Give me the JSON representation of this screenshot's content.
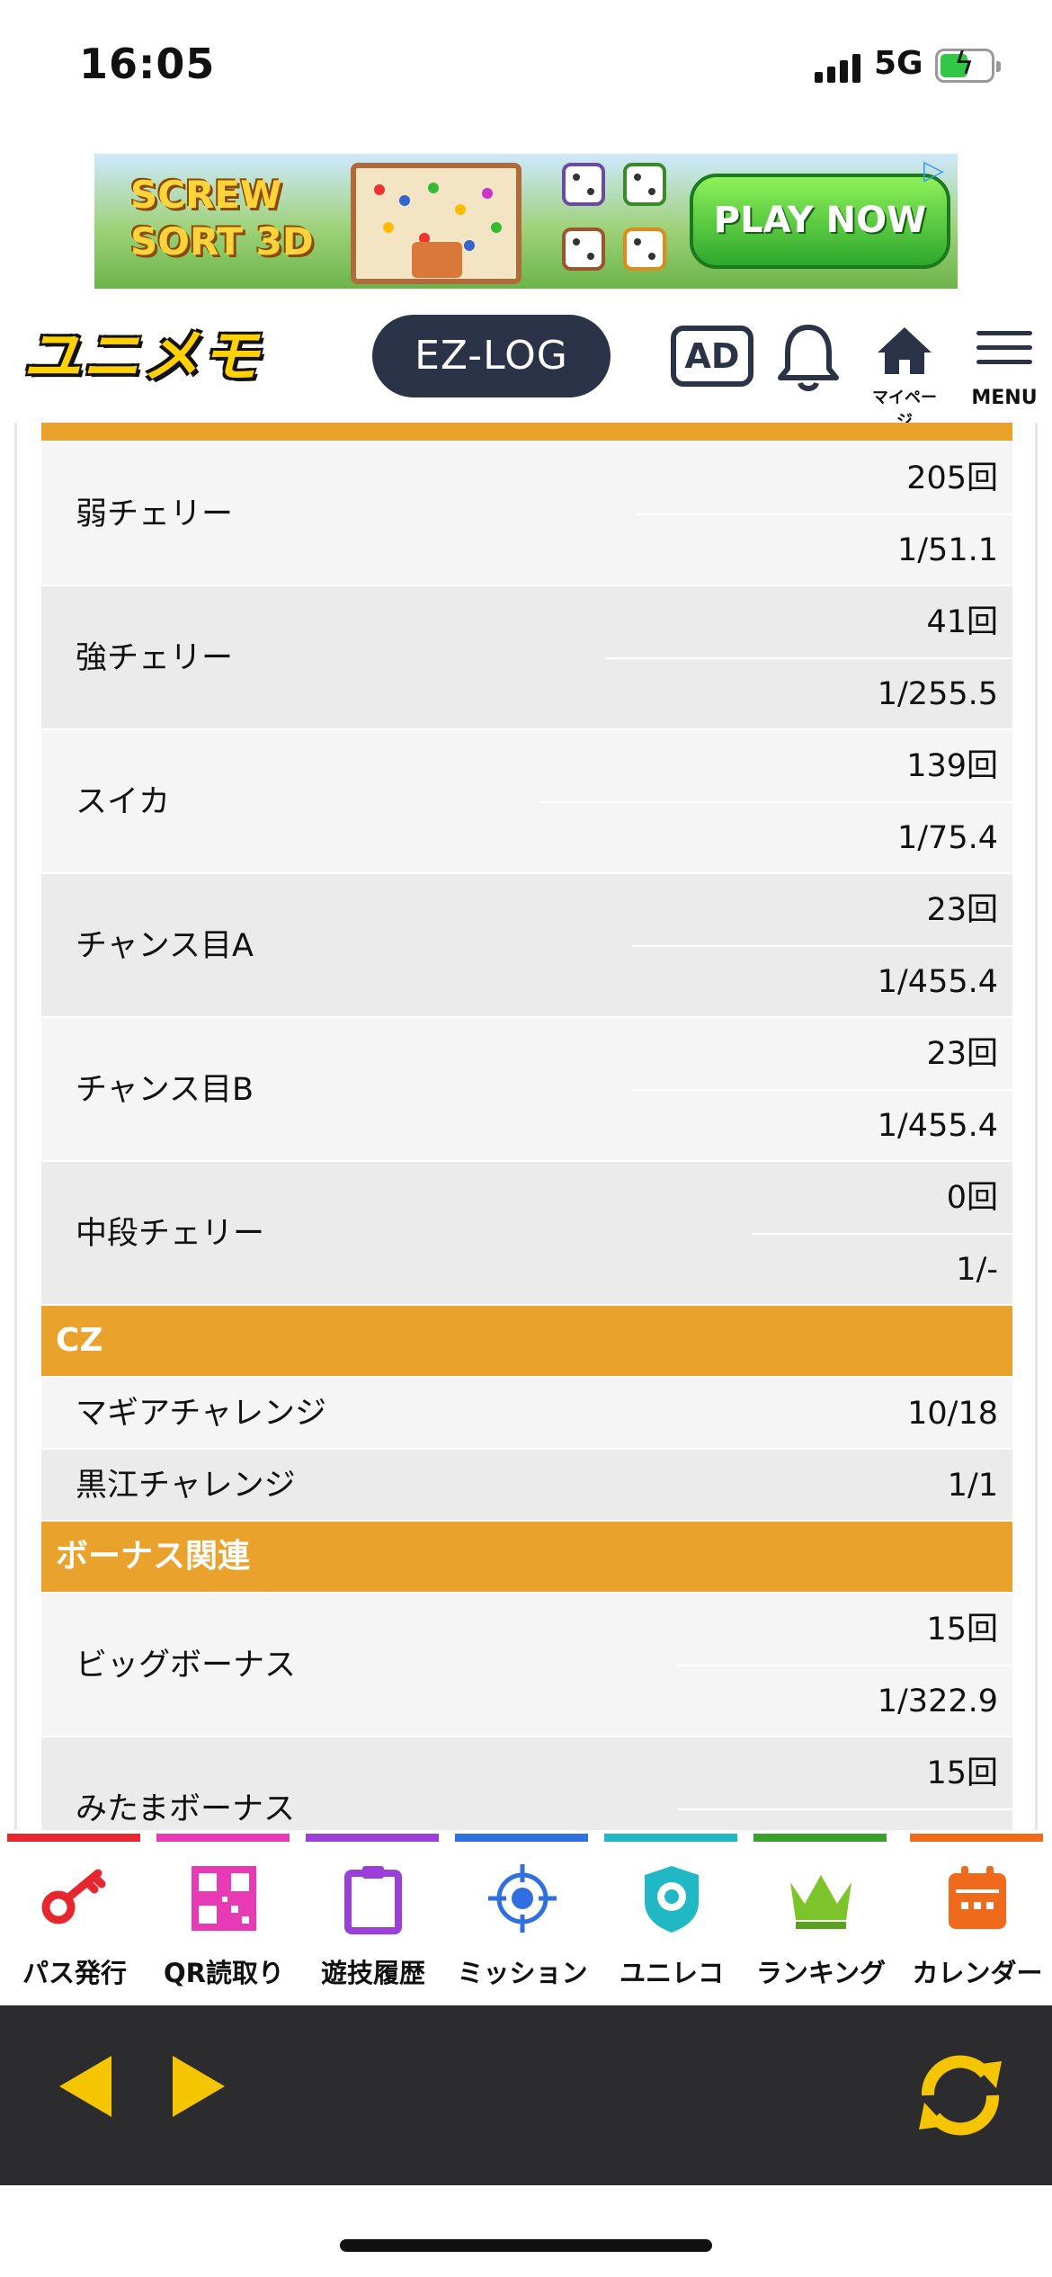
{
  "status_bar": {
    "time": "16:05",
    "network": "5G",
    "battery_level": 0.55
  },
  "ad_banner": {
    "title": "SCREW SORT 3D",
    "cta": "PLAY NOW"
  },
  "header": {
    "logo": "ユニメモ",
    "ezlog": "EZ-LOG",
    "ad_label": "AD",
    "mypage_label": "マイページ",
    "menu_label": "MENU"
  },
  "stats": {
    "koyaku_rows": [
      {
        "label": "弱チェリー",
        "count": "205回",
        "rate": "1/51.1"
      },
      {
        "label": "強チェリー",
        "count": "41回",
        "rate": "1/255.5"
      },
      {
        "label": "スイカ",
        "count": "139回",
        "rate": "1/75.4"
      },
      {
        "label": "チャンス目A",
        "count": "23回",
        "rate": "1/455.4"
      },
      {
        "label": "チャンス目B",
        "count": "23回",
        "rate": "1/455.4"
      },
      {
        "label": "中段チェリー",
        "count": "0回",
        "rate": "1/-"
      }
    ],
    "cz_header": "CZ",
    "cz_rows": [
      {
        "label": "マギアチャレンジ",
        "value": "10/18"
      },
      {
        "label": "黒江チャレンジ",
        "value": "1/1"
      }
    ],
    "bonus_header": "ボーナス関連",
    "bonus_rows": [
      {
        "label": "ビッグボーナス",
        "count": "15回",
        "rate": "1/322.9"
      },
      {
        "label": "みたまボーナス",
        "count": "15回",
        "rate": ""
      }
    ]
  },
  "tabbar": {
    "items": [
      {
        "label": "パス発行",
        "color": "#e8262f",
        "icon": "key-icon"
      },
      {
        "label": "QR読取り",
        "color": "#e83ab5",
        "icon": "qr-code-icon"
      },
      {
        "label": "遊技履歴",
        "color": "#9b3fd8",
        "icon": "clipboard-icon"
      },
      {
        "label": "ミッション",
        "color": "#2f6fe0",
        "icon": "target-icon"
      },
      {
        "label": "ユニレコ",
        "color": "#1fb8c4",
        "icon": "unireco-icon"
      },
      {
        "label": "ランキング",
        "color": "#3aa02c",
        "icon": "crown-icon"
      },
      {
        "label": "カレンダー",
        "color": "#ef6a1a",
        "icon": "calendar-icon"
      }
    ]
  },
  "colors": {
    "section_header": "#e9a22b",
    "browser_bar": "#2c2c2e",
    "nav_accent": "#f4c500"
  }
}
